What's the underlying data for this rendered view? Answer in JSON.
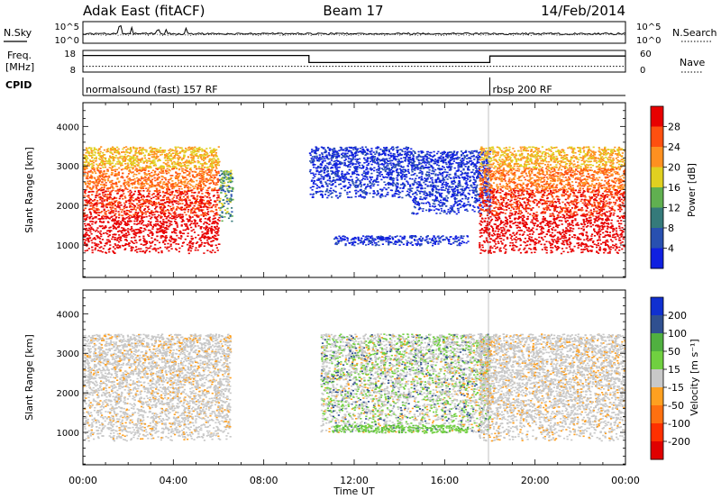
{
  "header": {
    "station": "Adak East (fitACF)",
    "beam": "Beam 17",
    "date": "14/Feb/2014"
  },
  "top_panels": {
    "nsky_label": "N.Sky",
    "nsearch_label": "N.Search",
    "noise_ticks": [
      "10^5",
      "10^0"
    ],
    "freq_label_1": "Freq.",
    "freq_label_2": "[MHz]",
    "freq_ticks": [
      "18",
      "8"
    ],
    "nave_label": "Nave",
    "nave_ticks": [
      "60",
      "0"
    ],
    "cpid_label": "CPID",
    "cpid_segments": [
      {
        "start": 0,
        "end": 18,
        "label": "normalsound (fast) 157 RF"
      },
      {
        "start": 18,
        "end": 24,
        "label": "rbsp 200 RF"
      }
    ],
    "freq_series": {
      "times": [
        0,
        10,
        10,
        18,
        18,
        24
      ],
      "values": [
        16.2,
        16.2,
        12.3,
        12.3,
        15.9,
        15.9
      ]
    },
    "nave_series": {
      "times": [
        0,
        24
      ],
      "values": [
        16,
        16
      ]
    }
  },
  "chart_data": [
    {
      "type": "heatmap",
      "name": "power",
      "xlabel": "Time UT",
      "ylabel": "Slant Range [km]",
      "xlim": [
        0,
        24
      ],
      "ylim": [
        180,
        4600
      ],
      "x_ticks": [
        "00:00",
        "04:00",
        "08:00",
        "12:00",
        "16:00",
        "20:00",
        "00:00"
      ],
      "y_ticks": [
        1000,
        2000,
        3000,
        4000
      ],
      "colorbar": {
        "label": "Power [dB]",
        "ticks": [
          "4",
          "8",
          "12",
          "16",
          "20",
          "24",
          "28"
        ],
        "colors": [
          "#1020e0",
          "#2850b0",
          "#357a7a",
          "#60b050",
          "#e0d020",
          "#ff9020",
          "#ff5010",
          "#e80000"
        ]
      },
      "regions": [
        {
          "t": [
            0.0,
            6.0
          ],
          "r": [
            800,
            3500
          ],
          "level": "high"
        },
        {
          "t": [
            6.0,
            6.6
          ],
          "r": [
            1600,
            2900
          ],
          "level": "mid"
        },
        {
          "t": [
            10.0,
            14.5
          ],
          "r": [
            2200,
            3500
          ],
          "level": "low"
        },
        {
          "t": [
            11.0,
            17.0
          ],
          "r": [
            1000,
            1250
          ],
          "level": "low"
        },
        {
          "t": [
            14.5,
            18.0
          ],
          "r": [
            1800,
            3400
          ],
          "level": "low"
        },
        {
          "t": [
            17.5,
            24.0
          ],
          "r": [
            800,
            3500
          ],
          "level": "high"
        }
      ]
    },
    {
      "type": "heatmap",
      "name": "velocity",
      "xlabel": "Time UT",
      "ylabel": "Slant Range [km]",
      "xlim": [
        0,
        24
      ],
      "ylim": [
        180,
        4600
      ],
      "x_ticks": [
        "00:00",
        "04:00",
        "08:00",
        "12:00",
        "16:00",
        "20:00",
        "00:00"
      ],
      "y_ticks": [
        1000,
        2000,
        3000,
        4000
      ],
      "colorbar": {
        "label": "Velocity [m s⁻¹]",
        "ticks": [
          "200",
          "100",
          "50",
          "15",
          "-15",
          "-50",
          "-100",
          "-200"
        ],
        "colors": [
          "#1030d0",
          "#305090",
          "#50b040",
          "#70d040",
          "#c8c8c8",
          "#ffa020",
          "#ff7010",
          "#ff3000",
          "#e00000"
        ]
      },
      "regions": [
        {
          "t": [
            0.0,
            6.5
          ],
          "r": [
            800,
            3500
          ],
          "level": "ground"
        },
        {
          "t": [
            10.5,
            18.0
          ],
          "r": [
            1000,
            3500
          ],
          "level": "mixed"
        },
        {
          "t": [
            11.0,
            17.0
          ],
          "r": [
            1000,
            1200
          ],
          "level": "positive"
        },
        {
          "t": [
            17.5,
            24.0
          ],
          "r": [
            800,
            3500
          ],
          "level": "ground"
        }
      ]
    }
  ]
}
